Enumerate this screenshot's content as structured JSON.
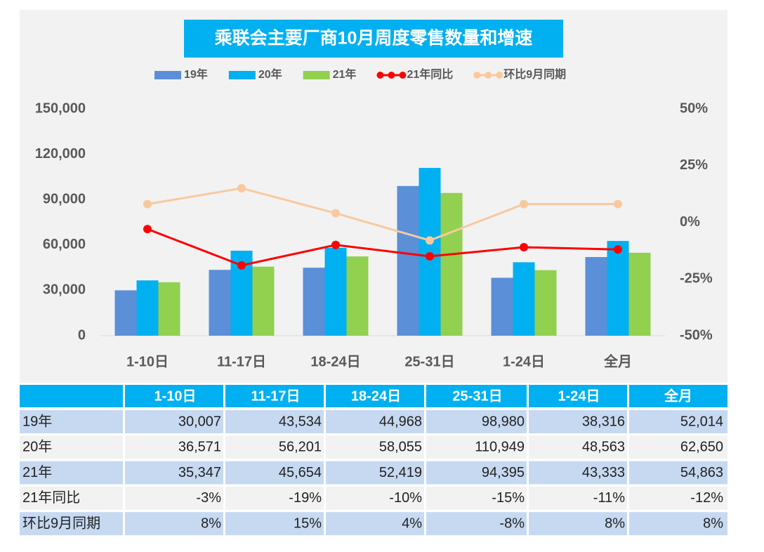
{
  "chart_data": {
    "type": "bar-line-table",
    "title": "乘联会主要厂商10月周度零售数量和增速",
    "categories": [
      "1-10日",
      "11-17日",
      "18-24日",
      "25-31日",
      "1-24日",
      "全月"
    ],
    "series": [
      {
        "name": "19年",
        "type": "bar",
        "color": "#5b8fd8",
        "values": [
          30007,
          43534,
          44968,
          98980,
          38316,
          52014
        ],
        "value_labels": [
          "30,007",
          "43,534",
          "44,968",
          "98,980",
          "38,316",
          "52,014"
        ]
      },
      {
        "name": "20年",
        "type": "bar",
        "color": "#00b0f0",
        "values": [
          36571,
          56201,
          58055,
          110949,
          48563,
          62650
        ],
        "value_labels": [
          "36,571",
          "56,201",
          "58,055",
          "110,949",
          "48,563",
          "62,650"
        ]
      },
      {
        "name": "21年",
        "type": "bar",
        "color": "#92d050",
        "values": [
          35347,
          45654,
          52419,
          94395,
          43333,
          54863
        ],
        "value_labels": [
          "35,347",
          "45,654",
          "52,419",
          "94,395",
          "43,333",
          "54,863"
        ]
      },
      {
        "name": "21年同比",
        "type": "line",
        "axis": "y2",
        "color": "#ff0000",
        "values": [
          -3,
          -19,
          -10,
          -15,
          -11,
          -12
        ],
        "value_labels": [
          "-3%",
          "-19%",
          "-10%",
          "-15%",
          "-11%",
          "-12%"
        ]
      },
      {
        "name": "环比9月同期",
        "type": "line",
        "axis": "y2",
        "color": "#f8c9a0",
        "values": [
          8,
          15,
          4,
          -8,
          8,
          8
        ],
        "value_labels": [
          "8%",
          "15%",
          "4%",
          "-8%",
          "8%",
          "8%"
        ]
      }
    ],
    "ylim": [
      0,
      150000
    ],
    "yticks": [
      0,
      {
        "value": 30000,
        "label": "30,000"
      },
      {
        "value": 60000,
        "label": "60,000"
      },
      {
        "value": 90000,
        "label": "90,000"
      },
      {
        "value": 120000,
        "label": "120,000"
      },
      {
        "value": 150000,
        "label": "150,000"
      }
    ],
    "y2lim": [
      -50,
      50
    ],
    "y2ticks": [
      {
        "value": -50,
        "label": "-50%"
      },
      {
        "value": -25,
        "label": "-25%"
      },
      {
        "value": 0,
        "label": "0%"
      },
      {
        "value": 25,
        "label": "25%"
      },
      {
        "value": 50,
        "label": "50%"
      }
    ],
    "legend": "top",
    "grid": false
  }
}
